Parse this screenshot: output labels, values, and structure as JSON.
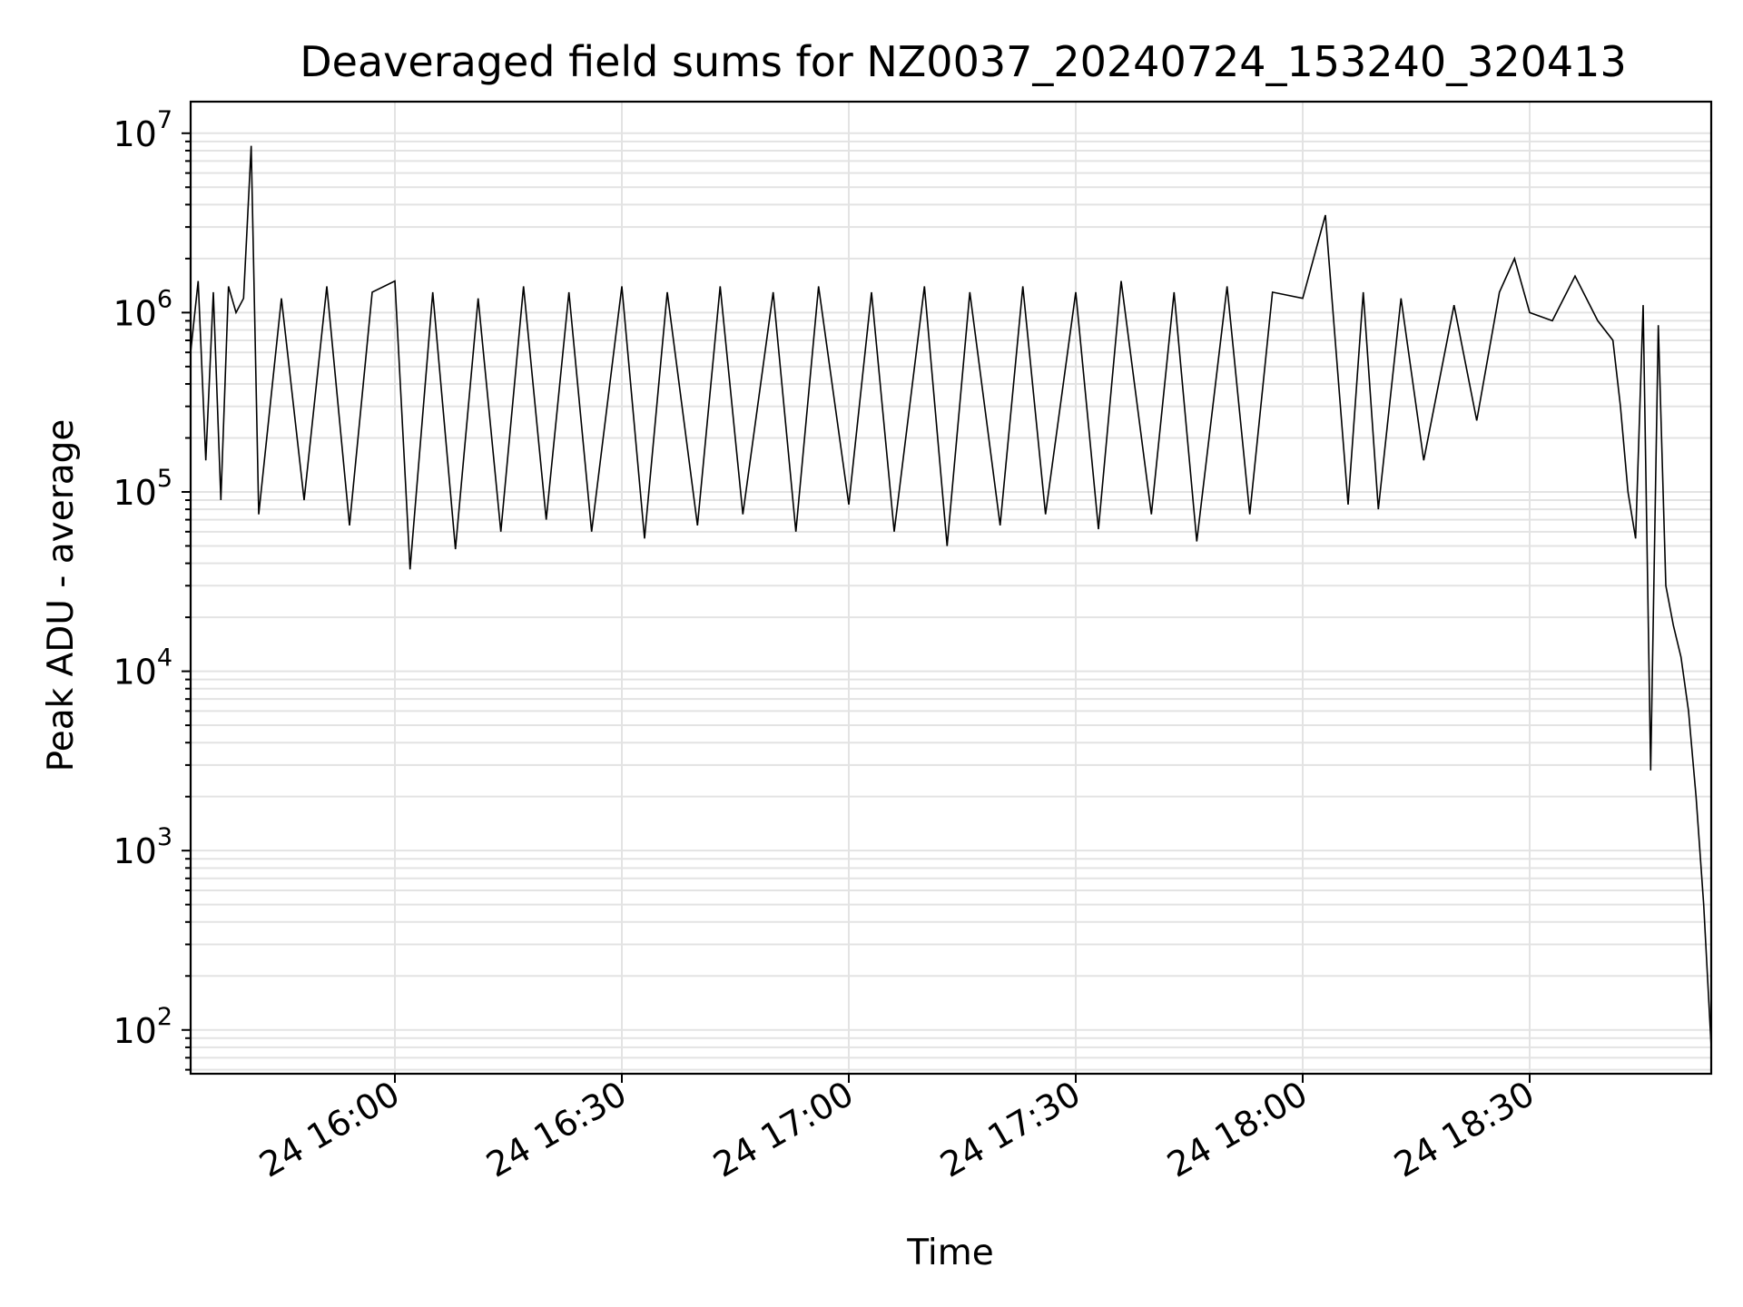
{
  "chart_data": {
    "type": "line",
    "title": "Deaveraged field sums for NZ0037_20240724_153240_320413",
    "xlabel": "Time",
    "ylabel": "Peak ADU - average",
    "yscale": "log",
    "grid": true,
    "line_color": "#000000",
    "grid_color": "#e3e3e3",
    "x_range": [
      "2024-07-24 15:33",
      "2024-07-24 18:54"
    ],
    "ylim": [
      57,
      15000000
    ],
    "x_ticks": [
      {
        "value": "2024-07-24 16:00",
        "label": "24 16:00"
      },
      {
        "value": "2024-07-24 16:30",
        "label": "24 16:30"
      },
      {
        "value": "2024-07-24 17:00",
        "label": "24 17:00"
      },
      {
        "value": "2024-07-24 17:30",
        "label": "24 17:30"
      },
      {
        "value": "2024-07-24 18:00",
        "label": "24 18:00"
      },
      {
        "value": "2024-07-24 18:30",
        "label": "24 18:30"
      }
    ],
    "y_ticks": [
      {
        "value": 100,
        "base": "10",
        "exp": "2"
      },
      {
        "value": 1000,
        "base": "10",
        "exp": "3"
      },
      {
        "value": 10000,
        "base": "10",
        "exp": "4"
      },
      {
        "value": 100000,
        "base": "10",
        "exp": "5"
      },
      {
        "value": 1000000,
        "base": "10",
        "exp": "6"
      },
      {
        "value": 10000000,
        "base": "10",
        "exp": "7"
      }
    ],
    "series": [
      {
        "x": [
          "2024-07-24 15:33",
          "2024-07-24 15:34",
          "2024-07-24 15:35",
          "2024-07-24 15:36",
          "2024-07-24 15:37",
          "2024-07-24 15:38",
          "2024-07-24 15:39",
          "2024-07-24 15:40",
          "2024-07-24 15:41",
          "2024-07-24 15:42",
          "2024-07-24 15:45",
          "2024-07-24 15:48",
          "2024-07-24 15:51",
          "2024-07-24 15:54",
          "2024-07-24 15:57",
          "2024-07-24 16:00",
          "2024-07-24 16:02",
          "2024-07-24 16:05",
          "2024-07-24 16:08",
          "2024-07-24 16:11",
          "2024-07-24 16:14",
          "2024-07-24 16:17",
          "2024-07-24 16:20",
          "2024-07-24 16:23",
          "2024-07-24 16:26",
          "2024-07-24 16:30",
          "2024-07-24 16:33",
          "2024-07-24 16:36",
          "2024-07-24 16:40",
          "2024-07-24 16:43",
          "2024-07-24 16:46",
          "2024-07-24 16:50",
          "2024-07-24 16:53",
          "2024-07-24 16:56",
          "2024-07-24 17:00",
          "2024-07-24 17:03",
          "2024-07-24 17:06",
          "2024-07-24 17:10",
          "2024-07-24 17:13",
          "2024-07-24 17:16",
          "2024-07-24 17:20",
          "2024-07-24 17:23",
          "2024-07-24 17:26",
          "2024-07-24 17:30",
          "2024-07-24 17:33",
          "2024-07-24 17:36",
          "2024-07-24 17:40",
          "2024-07-24 17:43",
          "2024-07-24 17:46",
          "2024-07-24 17:50",
          "2024-07-24 17:53",
          "2024-07-24 17:56",
          "2024-07-24 18:00",
          "2024-07-24 18:03",
          "2024-07-24 18:06",
          "2024-07-24 18:08",
          "2024-07-24 18:10",
          "2024-07-24 18:13",
          "2024-07-24 18:16",
          "2024-07-24 18:20",
          "2024-07-24 18:23",
          "2024-07-24 18:26",
          "2024-07-24 18:28",
          "2024-07-24 18:30",
          "2024-07-24 18:33",
          "2024-07-24 18:36",
          "2024-07-24 18:39",
          "2024-07-24 18:41",
          "2024-07-24 18:42",
          "2024-07-24 18:43",
          "2024-07-24 18:44",
          "2024-07-24 18:45",
          "2024-07-24 18:46",
          "2024-07-24 18:47",
          "2024-07-24 18:48",
          "2024-07-24 18:49",
          "2024-07-24 18:50",
          "2024-07-24 18:51",
          "2024-07-24 18:52",
          "2024-07-24 18:53",
          "2024-07-24 18:54"
        ],
        "y": [
          600000,
          1500000,
          150000,
          1300000,
          90000,
          1400000,
          1000000,
          1200000,
          8500000,
          75000,
          1200000,
          90000,
          1400000,
          65000,
          1300000,
          1500000,
          37000,
          1300000,
          48000,
          1200000,
          60000,
          1400000,
          70000,
          1300000,
          60000,
          1400000,
          55000,
          1300000,
          65000,
          1400000,
          75000,
          1300000,
          60000,
          1400000,
          85000,
          1300000,
          60000,
          1400000,
          50000,
          1300000,
          65000,
          1400000,
          75000,
          1300000,
          62000,
          1500000,
          75000,
          1300000,
          53000,
          1400000,
          75000,
          1300000,
          1200000,
          3500000,
          85000,
          1300000,
          80000,
          1200000,
          150000,
          1100000,
          250000,
          1300000,
          2000000,
          1000000,
          900000,
          1600000,
          900000,
          700000,
          300000,
          100000,
          55000,
          1100000,
          2800,
          850000,
          30000,
          18000,
          12000,
          6000,
          2000,
          500,
          80
        ],
        "type": "line"
      }
    ]
  }
}
